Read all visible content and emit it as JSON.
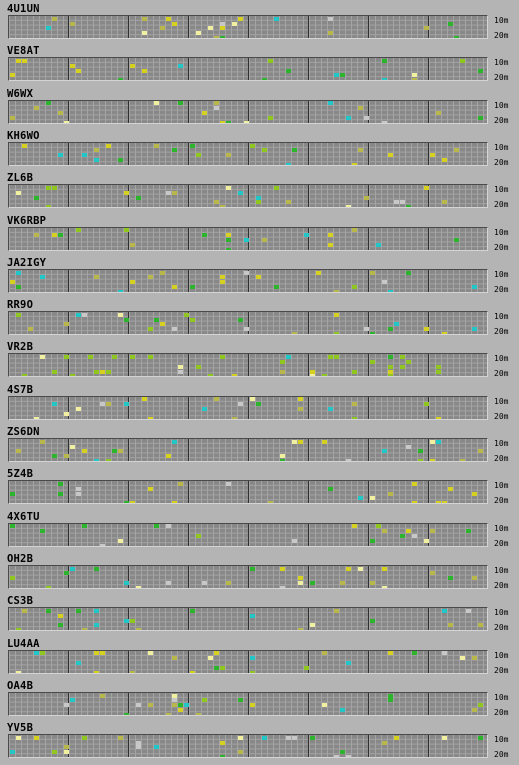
{
  "bands": {
    "top": "10m",
    "bottom": "20m"
  },
  "colors": {
    "yellow": "#d6d01e",
    "green": "#2cb52c",
    "cyan": "#21c6c6",
    "lime": "#8fc71e",
    "olive": "#b8b84a",
    "silver": "#c8c8c8",
    "white": "#f0f0a0"
  },
  "stations": [
    {
      "call": "4U1UN"
    },
    {
      "call": "VE8AT"
    },
    {
      "call": "W6WX"
    },
    {
      "call": "KH6WO"
    },
    {
      "call": "ZL6B"
    },
    {
      "call": "VK6RBP"
    },
    {
      "call": "JA2IGY"
    },
    {
      "call": "RR9O"
    },
    {
      "call": "VR2B"
    },
    {
      "call": "4S7B"
    },
    {
      "call": "ZS6DN"
    },
    {
      "call": "5Z4B"
    },
    {
      "call": "4X6TU"
    },
    {
      "call": "OH2B"
    },
    {
      "call": "CS3B"
    },
    {
      "call": "LU4AA"
    },
    {
      "call": "OA4B"
    },
    {
      "call": "YV5B"
    }
  ]
}
